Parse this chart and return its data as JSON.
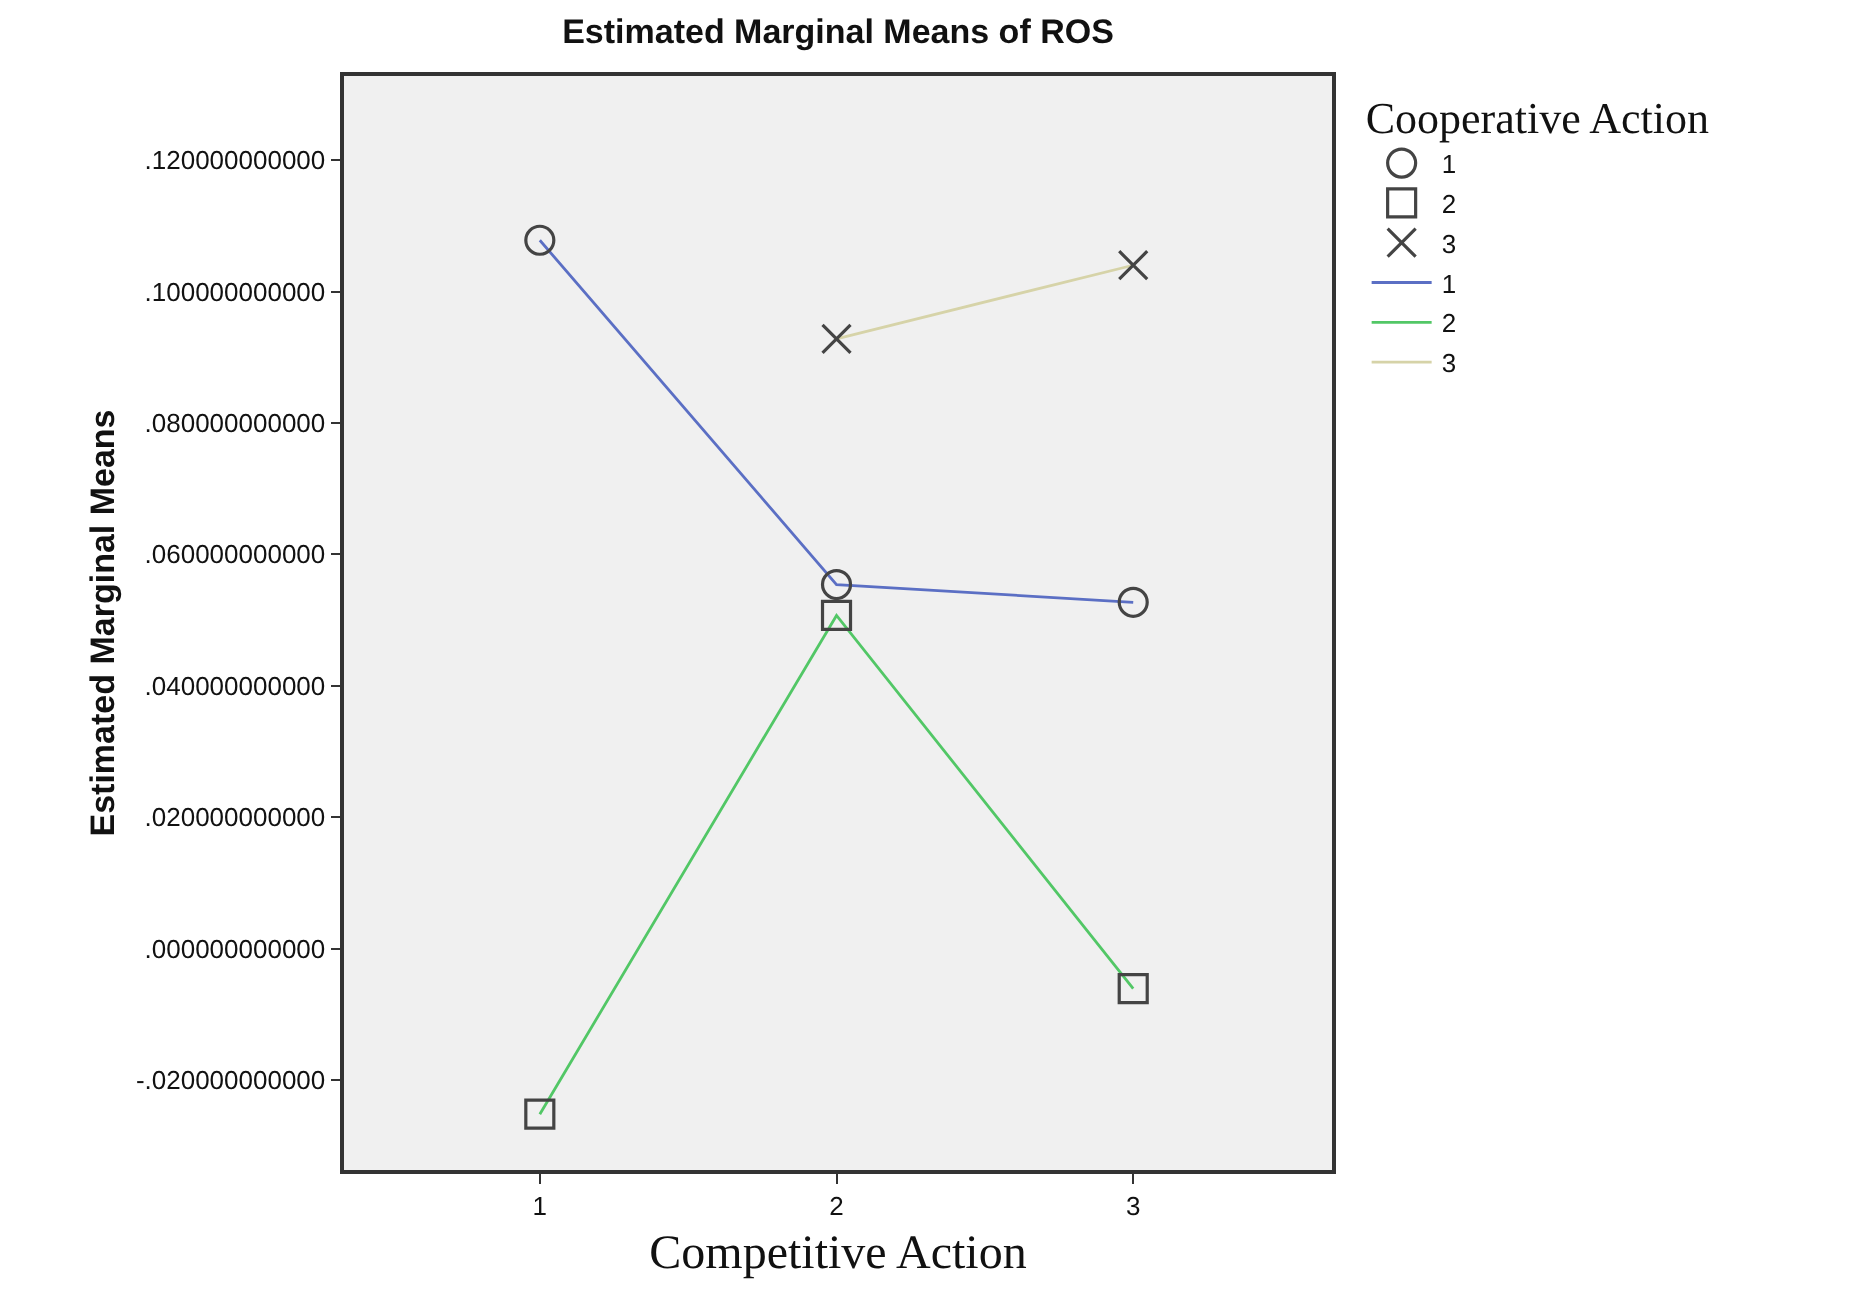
{
  "chart_data": {
    "type": "line",
    "title": "Estimated Marginal Means of ROS",
    "xlabel": "Competitive Action",
    "ylabel": "Estimated Marginal Means",
    "legend_title": "Cooperative Action",
    "legend": "right",
    "grid": false,
    "x": [
      1,
      2,
      3
    ],
    "xlim": [
      0.34,
      3.67
    ],
    "xticks": [
      1,
      2,
      3
    ],
    "ylim": [
      -0.0337,
      0.1328
    ],
    "yticks": [
      {
        "value": -0.02,
        "label": "-.020000000000"
      },
      {
        "value": 0,
        "label": ".000000000000"
      },
      {
        "value": 0.02,
        "label": ".020000000000"
      },
      {
        "value": 0.04,
        "label": ".040000000000"
      },
      {
        "value": 0.06,
        "label": ".060000000000"
      },
      {
        "value": 0.08,
        "label": ".080000000000"
      },
      {
        "value": 0.1,
        "label": ".100000000000"
      },
      {
        "value": 0.12,
        "label": ".120000000000"
      }
    ],
    "series": [
      {
        "name": "1",
        "color": "#5b6fc4",
        "marker": "circle",
        "values": [
          0.1078,
          0.0554,
          0.0527
        ]
      },
      {
        "name": "2",
        "color": "#52c766",
        "marker": "square",
        "values": [
          -0.0252,
          0.0507,
          -0.0061
        ]
      },
      {
        "name": "3",
        "color": "#d6d3a8",
        "marker": "cross",
        "values": [
          null,
          0.0928,
          0.104
        ]
      }
    ]
  }
}
